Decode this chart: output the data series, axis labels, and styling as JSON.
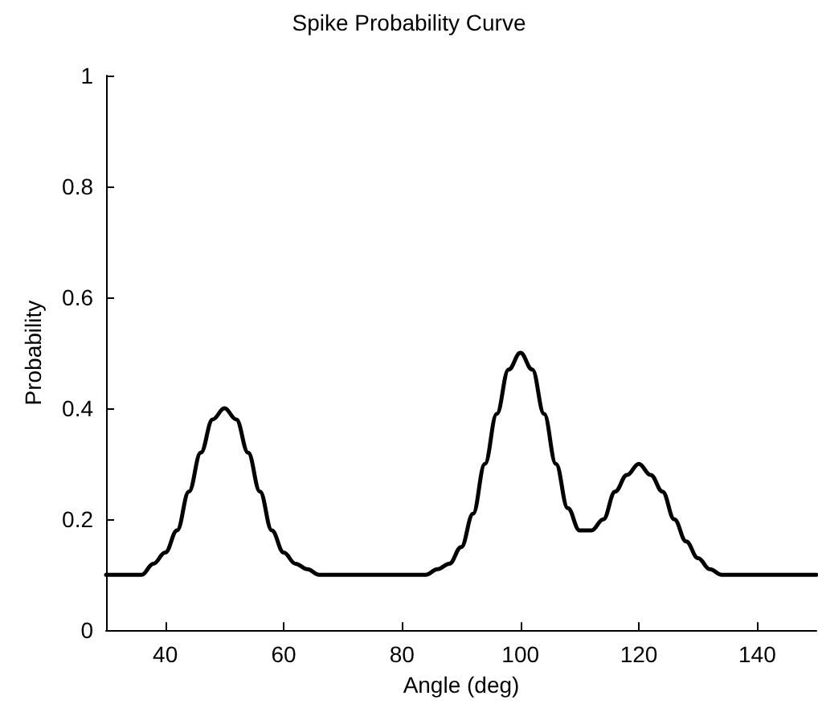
{
  "chart_data": {
    "type": "line",
    "title": "Spike Probability Curve",
    "xlabel": "Angle (deg)",
    "ylabel": "Probability",
    "x": [
      30,
      32,
      34,
      36,
      38,
      40,
      42,
      44,
      46,
      48,
      50,
      52,
      54,
      56,
      58,
      60,
      62,
      64,
      66,
      68,
      70,
      72,
      74,
      76,
      78,
      80,
      82,
      84,
      86,
      88,
      90,
      92,
      94,
      96,
      98,
      100,
      102,
      104,
      106,
      108,
      110,
      112,
      114,
      116,
      118,
      120,
      122,
      124,
      126,
      128,
      130,
      132,
      134,
      136,
      138,
      140,
      142,
      144,
      146,
      148,
      150
    ],
    "series": [
      {
        "color": "#000000",
        "values": [
          0.1,
          0.1,
          0.1,
          0.1,
          0.12,
          0.14,
          0.18,
          0.25,
          0.32,
          0.38,
          0.4,
          0.38,
          0.32,
          0.25,
          0.18,
          0.14,
          0.12,
          0.11,
          0.1,
          0.1,
          0.1,
          0.1,
          0.1,
          0.1,
          0.1,
          0.1,
          0.1,
          0.1,
          0.11,
          0.12,
          0.15,
          0.21,
          0.3,
          0.39,
          0.47,
          0.5,
          0.47,
          0.39,
          0.3,
          0.22,
          0.18,
          0.18,
          0.2,
          0.25,
          0.28,
          0.3,
          0.28,
          0.25,
          0.2,
          0.16,
          0.13,
          0.11,
          0.1,
          0.1,
          0.1,
          0.1,
          0.1,
          0.1,
          0.1,
          0.1,
          0.1
        ]
      }
    ],
    "xlim": [
      30,
      150
    ],
    "ylim": [
      0,
      1
    ],
    "xticks": [
      40,
      60,
      80,
      100,
      120,
      140
    ],
    "yticks": [
      0,
      0.2,
      0.4,
      0.6,
      0.8,
      1
    ],
    "grid": false,
    "marker": "none",
    "line_style": "solid"
  }
}
